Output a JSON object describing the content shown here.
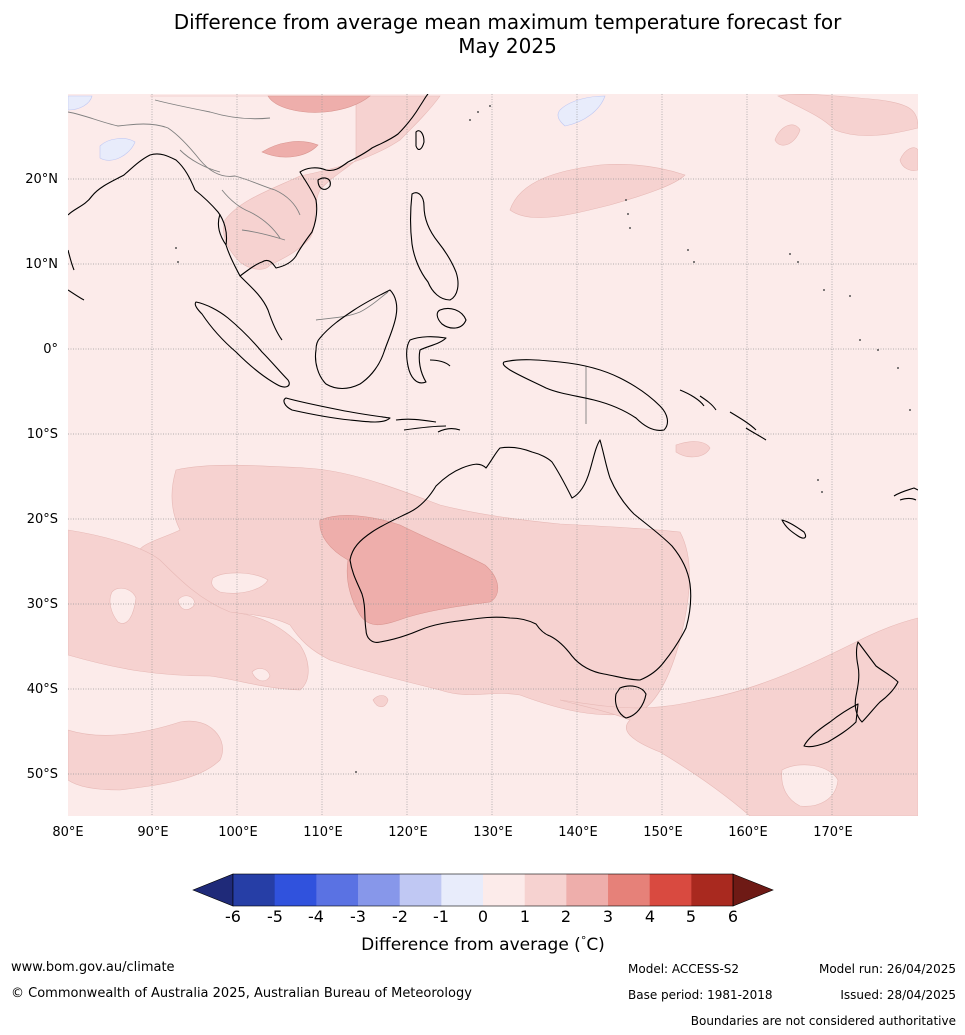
{
  "title": {
    "line1": "Difference from average mean maximum temperature forecast for",
    "line2": "May 2025"
  },
  "map": {
    "lat_labels": [
      "20°N",
      "10°N",
      "0°",
      "10°S",
      "20°S",
      "30°S",
      "40°S",
      "50°S"
    ],
    "lon_labels": [
      "80°E",
      "90°E",
      "100°E",
      "110°E",
      "120°E",
      "130°E",
      "140°E",
      "150°E",
      "160°E",
      "170°E"
    ],
    "colors": {
      "background_anomaly_0_1": "#fcebea",
      "anomaly_1_2": "#f6d2d0",
      "anomaly_2_3": "#eeaeab",
      "anomaly_m1_0": "#e8ecfb",
      "coastline": "#000000",
      "border": "#808080",
      "grid": "#999999"
    }
  },
  "colorbar": {
    "ticks": [
      "-6",
      "-5",
      "-4",
      "-3",
      "-2",
      "-1",
      "0",
      "1",
      "2",
      "3",
      "4",
      "5",
      "6"
    ],
    "colors": [
      "#1f2a79",
      "#263ea6",
      "#3052dd",
      "#5a72e3",
      "#8797ea",
      "#c0c8f3",
      "#e8ecfb",
      "#fcebea",
      "#f6d2d0",
      "#eeaeab",
      "#e68179",
      "#d94a40",
      "#a9291f",
      "#6e1a15"
    ],
    "label": "Difference from average (°C)",
    "label_prefix": "Difference from average (",
    "label_degree": "°",
    "label_unit": "C)"
  },
  "footer": {
    "website": "www.bom.gov.au/climate",
    "copyright": "© Commonwealth of Australia 2025, Australian Bureau of Meteorology",
    "model": "Model: ACCESS-S2",
    "base_period": "Base period: 1981-2018",
    "model_run": "Model run: 26/04/2025",
    "issued": "Issued: 28/04/2025",
    "boundaries_note": "Boundaries are not considered authoritative"
  }
}
